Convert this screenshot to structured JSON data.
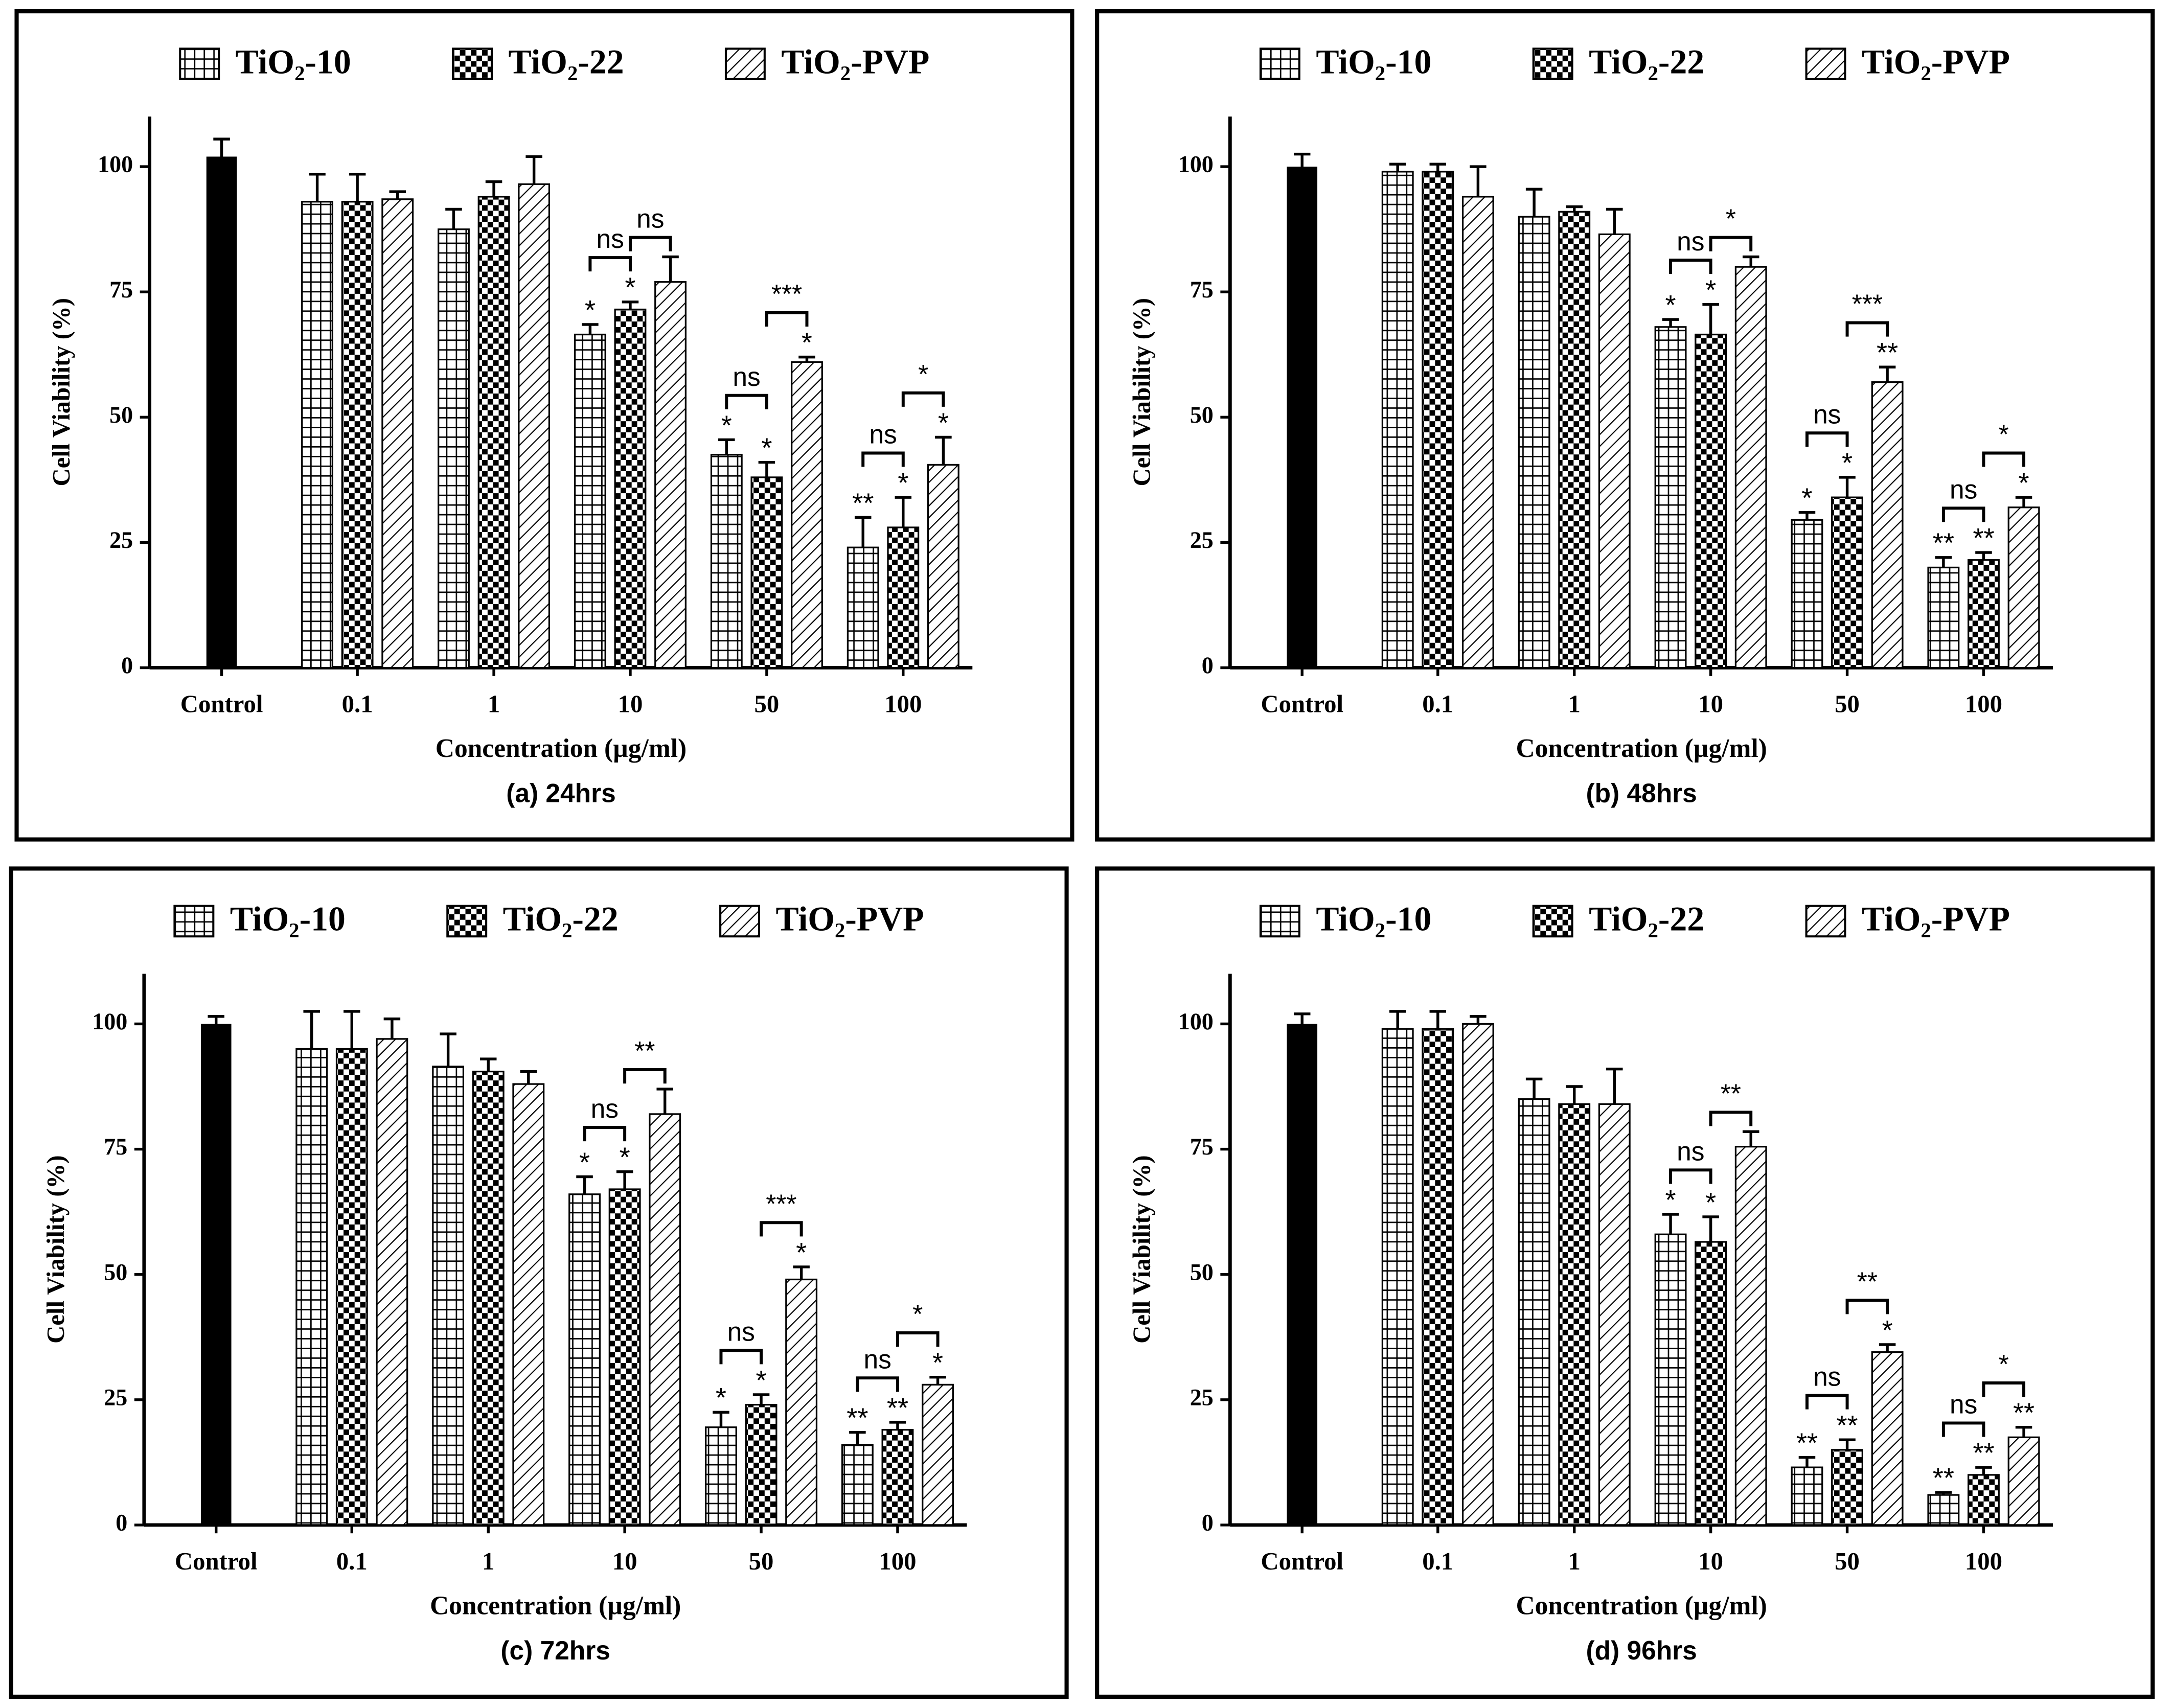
{
  "chart_data": [
    {
      "type": "bar",
      "caption": "(a) 24hrs",
      "xlabel": "Concentration (µg/ml)",
      "ylabel": "Cell Viability (%)",
      "ylim": [
        0,
        110
      ],
      "yticks": [
        0,
        25,
        50,
        75,
        100
      ],
      "control": {
        "label": "Control",
        "value": 102,
        "error": 3.5,
        "color": "#000000"
      },
      "categories": [
        "0.1",
        "1",
        "10",
        "50",
        "100"
      ],
      "series": [
        {
          "name": "TiO₂-10",
          "pattern": "grid",
          "values": [
            93,
            87.5,
            66.5,
            42.5,
            24
          ],
          "errors": [
            5.5,
            4,
            2,
            3,
            6
          ],
          "significance": [
            null,
            null,
            "*",
            "*",
            "**"
          ],
          "vs_next": [
            null,
            null,
            "ns",
            "ns",
            "ns"
          ]
        },
        {
          "name": "TiO₂-22",
          "pattern": "checker",
          "values": [
            93,
            94,
            71.5,
            38,
            28
          ],
          "errors": [
            5.5,
            3,
            1.5,
            3,
            6
          ],
          "significance": [
            null,
            null,
            "*",
            "*",
            "*"
          ],
          "vs_next": [
            null,
            null,
            "ns",
            "***",
            "*"
          ]
        },
        {
          "name": "TiO₂-PVP",
          "pattern": "hatch",
          "values": [
            93.5,
            96.5,
            77,
            61,
            40.5
          ],
          "errors": [
            1.5,
            5.5,
            5,
            1,
            5.5
          ],
          "significance": [
            null,
            null,
            null,
            "*",
            "*"
          ],
          "vs_next": [
            null,
            null,
            null,
            null,
            null
          ]
        }
      ]
    },
    {
      "type": "bar",
      "caption": "(b) 48hrs",
      "xlabel": "Concentration (µg/ml)",
      "ylabel": "Cell Viability (%)",
      "ylim": [
        0,
        110
      ],
      "yticks": [
        0,
        25,
        50,
        75,
        100
      ],
      "control": {
        "label": "Control",
        "value": 100,
        "error": 2.5,
        "color": "#000000"
      },
      "categories": [
        "0.1",
        "1",
        "10",
        "50",
        "100"
      ],
      "series": [
        {
          "name": "TiO₂-10",
          "pattern": "grid",
          "values": [
            99,
            90,
            68,
            29.5,
            20
          ],
          "errors": [
            1.5,
            5.5,
            1.5,
            1.5,
            2
          ],
          "significance": [
            null,
            null,
            "*",
            "*",
            "**"
          ],
          "vs_next": [
            null,
            null,
            "ns",
            "ns",
            "ns"
          ]
        },
        {
          "name": "TiO₂-22",
          "pattern": "checker",
          "values": [
            99,
            91,
            66.5,
            34,
            21.5
          ],
          "errors": [
            1.5,
            1,
            6,
            4,
            1.5
          ],
          "significance": [
            null,
            null,
            "*",
            "*",
            "**"
          ],
          "vs_next": [
            null,
            null,
            "*",
            "***",
            "*"
          ]
        },
        {
          "name": "TiO₂-PVP",
          "pattern": "hatch",
          "values": [
            94,
            86.5,
            80,
            57,
            32
          ],
          "errors": [
            6,
            5,
            2,
            3,
            2
          ],
          "significance": [
            null,
            null,
            null,
            "**",
            "*"
          ],
          "vs_next": [
            null,
            null,
            null,
            null,
            null
          ]
        }
      ]
    },
    {
      "type": "bar",
      "caption": "(c) 72hrs",
      "xlabel": "Concentration (µg/ml)",
      "ylabel": "Cell Viability (%)",
      "ylim": [
        0,
        110
      ],
      "yticks": [
        0,
        25,
        50,
        75,
        100
      ],
      "control": {
        "label": "Control",
        "value": 100,
        "error": 1.5,
        "color": "#000000"
      },
      "categories": [
        "0.1",
        "1",
        "10",
        "50",
        "100"
      ],
      "series": [
        {
          "name": "TiO₂-10",
          "pattern": "grid",
          "values": [
            95,
            91.5,
            66,
            19.5,
            16
          ],
          "errors": [
            7.5,
            6.5,
            3.5,
            3,
            2.5
          ],
          "significance": [
            null,
            null,
            "*",
            "*",
            "**"
          ],
          "vs_next": [
            null,
            null,
            "ns",
            "ns",
            "ns"
          ]
        },
        {
          "name": "TiO₂-22",
          "pattern": "checker",
          "values": [
            95,
            90.5,
            67,
            24,
            19
          ],
          "errors": [
            7.5,
            2.5,
            3.5,
            2,
            1.5
          ],
          "significance": [
            null,
            null,
            "*",
            "*",
            "**"
          ],
          "vs_next": [
            null,
            null,
            "**",
            "***",
            "*"
          ]
        },
        {
          "name": "TiO₂-PVP",
          "pattern": "hatch",
          "values": [
            97,
            88,
            82,
            49,
            28
          ],
          "errors": [
            4,
            2.5,
            5,
            2.5,
            1.5
          ],
          "significance": [
            null,
            null,
            null,
            "*",
            "*"
          ],
          "vs_next": [
            null,
            null,
            null,
            null,
            null
          ]
        }
      ]
    },
    {
      "type": "bar",
      "caption": "(d) 96hrs",
      "xlabel": "Concentration (µg/ml)",
      "ylabel": "Cell Viability (%)",
      "ylim": [
        0,
        110
      ],
      "yticks": [
        0,
        25,
        50,
        75,
        100
      ],
      "control": {
        "label": "Control",
        "value": 100,
        "error": 2,
        "color": "#000000"
      },
      "categories": [
        "0.1",
        "1",
        "10",
        "50",
        "100"
      ],
      "series": [
        {
          "name": "TiO₂-10",
          "pattern": "grid",
          "values": [
            99,
            85,
            58,
            11.5,
            6
          ],
          "errors": [
            3.5,
            4,
            4,
            2,
            0.5
          ],
          "significance": [
            null,
            null,
            "*",
            "**",
            "**"
          ],
          "vs_next": [
            null,
            null,
            "ns",
            "ns",
            "ns"
          ]
        },
        {
          "name": "TiO₂-22",
          "pattern": "checker",
          "values": [
            99,
            84,
            56.5,
            15,
            10
          ],
          "errors": [
            3.5,
            3.5,
            5,
            2,
            1.5
          ],
          "significance": [
            null,
            null,
            "*",
            "**",
            "**"
          ],
          "vs_next": [
            null,
            null,
            "**",
            "**",
            "*"
          ]
        },
        {
          "name": "TiO₂-PVP",
          "pattern": "hatch",
          "values": [
            100,
            84,
            75.5,
            34.5,
            17.5
          ],
          "errors": [
            1.5,
            7,
            3,
            1.5,
            2
          ],
          "significance": [
            null,
            null,
            null,
            "*",
            "**"
          ],
          "vs_next": [
            null,
            null,
            null,
            null,
            null
          ]
        }
      ]
    }
  ]
}
